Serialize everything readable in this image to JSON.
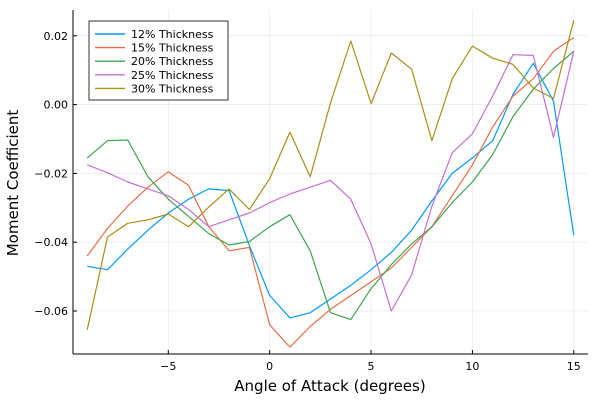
{
  "chart_data": {
    "type": "line",
    "title": "",
    "xlabel": "Angle of Attack (degrees)",
    "ylabel": "Moment Coefficient",
    "xlim": [
      -9.7,
      15.7
    ],
    "ylim": [
      -0.0725,
      0.0275
    ],
    "xticks": [
      -5,
      0,
      5,
      10,
      15
    ],
    "xtick_labels": [
      "−5",
      "0",
      "5",
      "10",
      "15"
    ],
    "yticks": [
      -0.06,
      -0.04,
      -0.02,
      0.0,
      0.02
    ],
    "ytick_labels": [
      "−0.06",
      "−0.04",
      "−0.02",
      "0.00",
      "0.02"
    ],
    "grid": true,
    "legend_position": "top-left",
    "x": [
      -9,
      -8,
      -7,
      -6,
      -5,
      -4,
      -3,
      -2,
      -1,
      0,
      1,
      2,
      3,
      4,
      5,
      6,
      7,
      8,
      9,
      10,
      11,
      12,
      13,
      14,
      15
    ],
    "series": [
      {
        "name": "12% Thickness",
        "color": "#009AFA",
        "values": [
          -0.047,
          -0.048,
          -0.042,
          -0.0365,
          -0.0315,
          -0.0275,
          -0.0245,
          -0.025,
          -0.041,
          -0.0555,
          -0.062,
          -0.0605,
          -0.0565,
          -0.0525,
          -0.048,
          -0.043,
          -0.0365,
          -0.028,
          -0.02,
          -0.0155,
          -0.0105,
          0.003,
          0.012,
          0.001,
          -0.038
        ]
      },
      {
        "name": "15% Thickness",
        "color": "#E36F47",
        "values": [
          -0.044,
          -0.036,
          -0.0295,
          -0.024,
          -0.0195,
          -0.0235,
          -0.0355,
          -0.0425,
          -0.0415,
          -0.064,
          -0.0705,
          -0.0645,
          -0.0595,
          -0.0555,
          -0.0515,
          -0.0475,
          -0.0415,
          -0.0355,
          -0.0265,
          -0.0175,
          -0.0065,
          0.0025,
          0.0075,
          0.0155,
          0.0195
        ]
      },
      {
        "name": "20% Thickness",
        "color": "#3EA44E",
        "values": [
          -0.0155,
          -0.0105,
          -0.0103,
          -0.021,
          -0.0275,
          -0.0325,
          -0.0375,
          -0.0408,
          -0.0398,
          -0.0355,
          -0.032,
          -0.0425,
          -0.0605,
          -0.0625,
          -0.0535,
          -0.0465,
          -0.0405,
          -0.0355,
          -0.0285,
          -0.0225,
          -0.0145,
          -0.0035,
          0.0045,
          0.0105,
          0.0155
        ]
      },
      {
        "name": "25% Thickness",
        "color": "#C371D2",
        "values": [
          -0.0175,
          -0.0198,
          -0.0225,
          -0.0245,
          -0.0265,
          -0.0305,
          -0.0355,
          -0.0335,
          -0.0315,
          -0.0285,
          -0.026,
          -0.024,
          -0.022,
          -0.0275,
          -0.0405,
          -0.06,
          -0.0495,
          -0.0295,
          -0.014,
          -0.0085,
          0.0025,
          0.0145,
          0.0143,
          -0.0095,
          0.0155
        ]
      },
      {
        "name": "30% Thickness",
        "color": "#AC8D18",
        "values": [
          -0.0655,
          -0.0385,
          -0.0345,
          -0.0335,
          -0.0318,
          -0.0355,
          -0.0298,
          -0.0245,
          -0.0305,
          -0.0215,
          -0.008,
          -0.021,
          0.0005,
          0.0185,
          0.0003,
          0.015,
          0.0103,
          -0.0105,
          0.0075,
          0.017,
          0.0135,
          0.0117,
          0.0048,
          0.0018,
          0.0245
        ]
      }
    ]
  }
}
